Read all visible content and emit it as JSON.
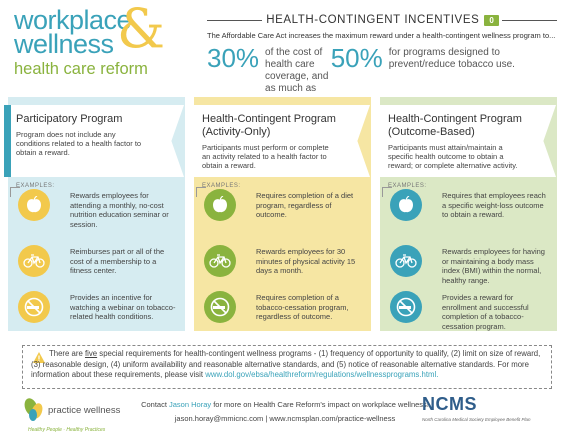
{
  "header": {
    "line1": "workplace",
    "line2": "wellness",
    "ampersand": "&",
    "line3": "health care reform"
  },
  "incentives": {
    "title": "HEALTH-CONTINGENT INCENTIVES",
    "badge": "0",
    "intro": "The Affordable Care Act increases the maximum reward under a health-contingent wellness program to...",
    "stat1_big": "30%",
    "stat1_text": "of the cost of health care coverage, and as much as",
    "stat2_big": "50%",
    "stat2_text": "for programs designed to prevent/reduce tobacco use."
  },
  "columns": [
    {
      "title": "Participatory Program",
      "desc": "Program does not include any conditions related to a health factor to obtain a reward.",
      "examples_label": "EXAMPLES:",
      "items": [
        {
          "icon": "apple-icon",
          "text": "Rewards employees for attending a monthly, no-cost nutrition education seminar or session."
        },
        {
          "icon": "bicycle-icon",
          "text": "Reimburses part or all of the cost of a membership to a fitness center."
        },
        {
          "icon": "no-smoking-icon",
          "text": "Provides an incentive for watching a webinar on tobacco-related health conditions."
        }
      ]
    },
    {
      "title": "Health-Contingent Program (Activity-Only)",
      "desc": "Participants must perform or complete an activity related to a health factor to obtain a reward.",
      "examples_label": "EXAMPLES:",
      "items": [
        {
          "icon": "apple-icon",
          "text": "Requires completion of a diet program, regardless of outcome."
        },
        {
          "icon": "bicycle-icon",
          "text": "Rewards employees for 30 minutes of physical activity 15 days a month."
        },
        {
          "icon": "no-smoking-icon",
          "text": "Requires completion of a tobacco-cessation program, regardless of outcome."
        }
      ]
    },
    {
      "title": "Health-Contingent Program (Outcome-Based)",
      "desc": "Participants must attain/maintain a specific health outcome to obtain a reward; or complete alternative activity.",
      "examples_label": "EXAMPLES:",
      "items": [
        {
          "icon": "apple-icon",
          "text": "Requires that employees reach a specific weight-loss outcome to obtain a reward."
        },
        {
          "icon": "bicycle-icon",
          "text": "Rewards employees for having or maintaining a body mass index (BMI) within the normal, healthy range."
        },
        {
          "icon": "no-smoking-icon",
          "text": "Provides a reward for enrollment and successful completion of a tobacco-cessation program."
        }
      ]
    }
  ],
  "requirements": {
    "p1": "There are ",
    "five": "five",
    "p2": " special requirements for health-contingent wellness programs - (1) frequency of opportunity to qualify, (2) limit on size of reward, (3) reasonable design, (4) uniform availability and reasonable alternative standards, and (5) notice of reasonable alternative standards.",
    "p3": "For more information about these requirements, please visit ",
    "link": "www.dol.gov/ebsa/healthreform/regulations/wellnessprograms.html."
  },
  "footer": {
    "logo_name": "practice wellness",
    "tagline": "Healthy People · Healthy Practices",
    "contact_pre": "Contact ",
    "contact_name": "Jason Horay",
    "contact_post": " for more on Health Care Reform's impact on workplace wellness!",
    "email_line": "jason.horay@mmicnc.com  |  www.ncmsplan.com/practice-wellness",
    "ncms": "NCMS",
    "ncms_sub": "North Carolina Medical Society Employee Benefit Plan"
  },
  "colors": {
    "blue": "#3aa2b9",
    "green": "#8ab33e",
    "yellow": "#f2c94c"
  }
}
